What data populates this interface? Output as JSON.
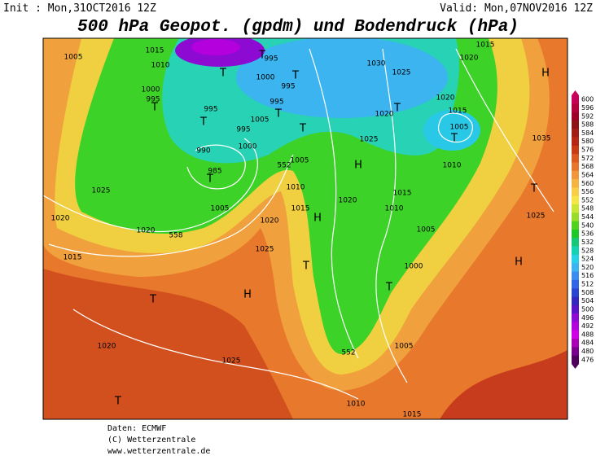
{
  "header": {
    "init": "Init : Mon,31OCT2016 12Z",
    "valid": "Valid: Mon,07NOV2016 12Z",
    "title": "500 hPa Geopot. (gpdm) und Bodendruck (hPa)"
  },
  "map": {
    "labels": [
      "T",
      "T",
      "995",
      "1000",
      "995",
      "T",
      "1000",
      "995",
      "T",
      "995",
      "T",
      "995",
      "1005",
      "995",
      "T",
      "T",
      "1000",
      "990",
      "985",
      "T",
      "1005",
      "552",
      "1010",
      "1015",
      "1005",
      "1020",
      "H",
      "1025",
      "1020",
      "1020",
      "558",
      "1025",
      "1015",
      "T",
      "H",
      "T",
      "1020",
      "1025",
      "T",
      "1030",
      "1025",
      "1020",
      "T",
      "1025",
      "H",
      "1020",
      "1015",
      "1010",
      "1020",
      "1015",
      "1005",
      "T",
      "1010",
      "1015",
      "1020",
      "H",
      "1035",
      "T",
      "1025",
      "H",
      "1005",
      "1000",
      "T",
      "552",
      "1005",
      "1010",
      "1015",
      "1005",
      "1015",
      "1010"
    ]
  },
  "colorbar": {
    "ticks": [
      600,
      596,
      592,
      588,
      584,
      580,
      576,
      572,
      568,
      564,
      560,
      556,
      552,
      548,
      544,
      540,
      536,
      532,
      528,
      524,
      520,
      516,
      512,
      508,
      504,
      500,
      496,
      492,
      488,
      484,
      480,
      476
    ],
    "colors": [
      "#c8005a",
      "#b4003c",
      "#a00028",
      "#8c1414",
      "#a01e14",
      "#b42814",
      "#c83c14",
      "#dc5a1e",
      "#e6782d",
      "#f0963c",
      "#f5b441",
      "#facd46",
      "#f5e646",
      "#c8e632",
      "#96dc28",
      "#50d21e",
      "#1ec828",
      "#14c878",
      "#14d2b4",
      "#28d2e6",
      "#3cb4f0",
      "#3c8cf0",
      "#3264e6",
      "#2846d2",
      "#3228be",
      "#5a14c8",
      "#8c0ad2",
      "#b400dc",
      "#d200e6",
      "#aa00b4",
      "#78008c",
      "#50005a"
    ]
  },
  "footer": {
    "source": "Daten: ECMWF",
    "copyright": "(C) Wetterzentrale",
    "url": "www.wetterzentrale.de"
  }
}
